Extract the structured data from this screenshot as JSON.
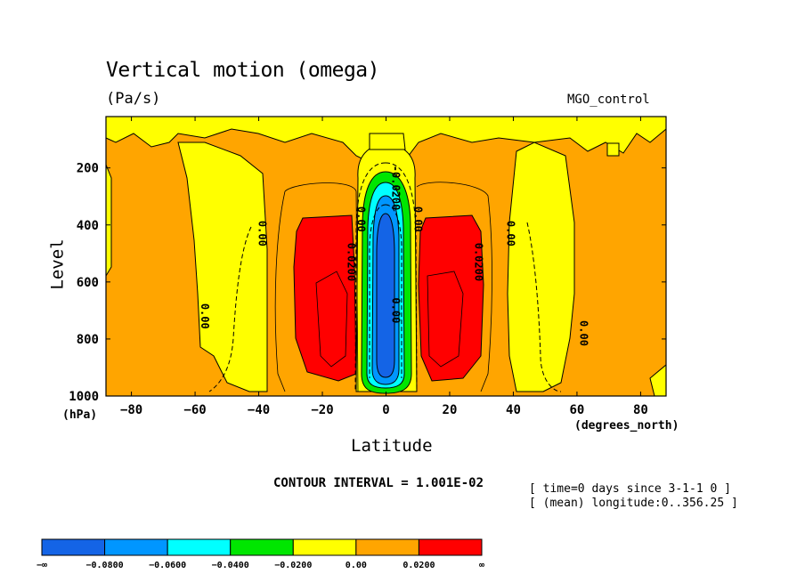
{
  "chart_data": {
    "type": "contour",
    "title": "Vertical motion (omega)",
    "units": "(Pa/s)",
    "run_label": "MGO_control",
    "xlabel": "Latitude",
    "x_units": "(degrees_north)",
    "ylabel": "Level",
    "y_units": "(hPa)",
    "xlim": [
      -88,
      88
    ],
    "ylim": [
      1000,
      20
    ],
    "y_inverted": true,
    "x_ticks": [
      {
        "value": -80,
        "label": "−80"
      },
      {
        "value": -60,
        "label": "−60"
      },
      {
        "value": -40,
        "label": "−40"
      },
      {
        "value": -20,
        "label": "−20"
      },
      {
        "value": 0,
        "label": "0"
      },
      {
        "value": 20,
        "label": "20"
      },
      {
        "value": 40,
        "label": "40"
      },
      {
        "value": 60,
        "label": "60"
      },
      {
        "value": 80,
        "label": "80"
      }
    ],
    "y_ticks": [
      {
        "value": 200,
        "label": "200"
      },
      {
        "value": 400,
        "label": "400"
      },
      {
        "value": 600,
        "label": "600"
      },
      {
        "value": 800,
        "label": "800"
      },
      {
        "value": 1000,
        "label": "1000"
      }
    ],
    "contour_interval": "CONTOUR INTERVAL = 1.001E-02",
    "colorbar": {
      "bounds": [
        "−∞",
        "−0.0800",
        "−0.0600",
        "−0.0400",
        "−0.0200",
        "0.00",
        "0.0200",
        "∞"
      ],
      "colors": [
        "#1464e6",
        "#0096ff",
        "#00ffff",
        "#00e600",
        "#ffff00",
        "#ffa500",
        "#ff0000"
      ]
    },
    "contour_labels": [
      {
        "text": "0.00",
        "lat": -58,
        "lev": 720
      },
      {
        "text": "0.00",
        "lat": -40,
        "lev": 430
      },
      {
        "text": "0.00",
        "lat": -9,
        "lev": 380
      },
      {
        "text": "0.0200",
        "lat": -12,
        "lev": 530
      },
      {
        "text": "0.00",
        "lat": 9,
        "lev": 380
      },
      {
        "text": "0.0200",
        "lat": 28,
        "lev": 530
      },
      {
        "text": "0.00",
        "lat": 38,
        "lev": 430
      },
      {
        "text": "0.00",
        "lat": 61,
        "lev": 780
      },
      {
        "text": "0.00",
        "lat": 2,
        "lev": 700
      },
      {
        "text": "-0.0200",
        "lat": 2,
        "lev": 270
      }
    ]
  },
  "footer": {
    "time": "[ time=0 days since 3-1-1 0 ]",
    "longitude": "[ (mean) longitude:0..356.25 ]"
  },
  "colors": {
    "neg_strong": "#1464e6",
    "neg_med": "#0096ff",
    "neg_light": "#00ffff",
    "neg_weak": "#00e600",
    "near_zero": "#ffff00",
    "pos_weak": "#ffa500",
    "pos_strong": "#ff0000"
  }
}
